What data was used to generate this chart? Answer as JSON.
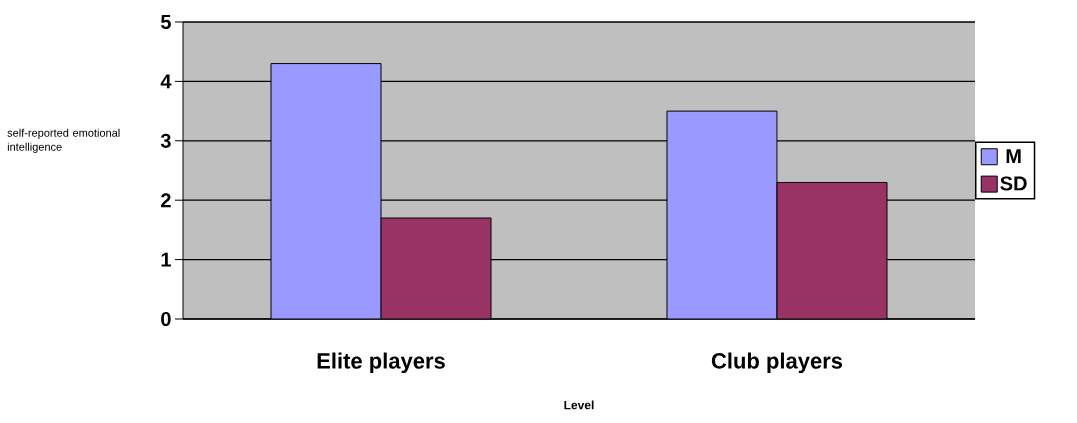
{
  "chart_data": {
    "type": "bar",
    "categories": [
      "Elite players",
      "Club players"
    ],
    "series": [
      {
        "name": "M",
        "color": "#9999ff",
        "values": [
          4.3,
          3.5
        ]
      },
      {
        "name": "SD",
        "color": "#993366",
        "values": [
          1.7,
          2.3
        ]
      }
    ],
    "xlabel": "Level",
    "ylabel": "self-reported emotional intelligence",
    "ylim": [
      0,
      5
    ],
    "yticks": [
      0,
      1,
      2,
      3,
      4,
      5
    ],
    "grid": "y",
    "legend": "right"
  }
}
